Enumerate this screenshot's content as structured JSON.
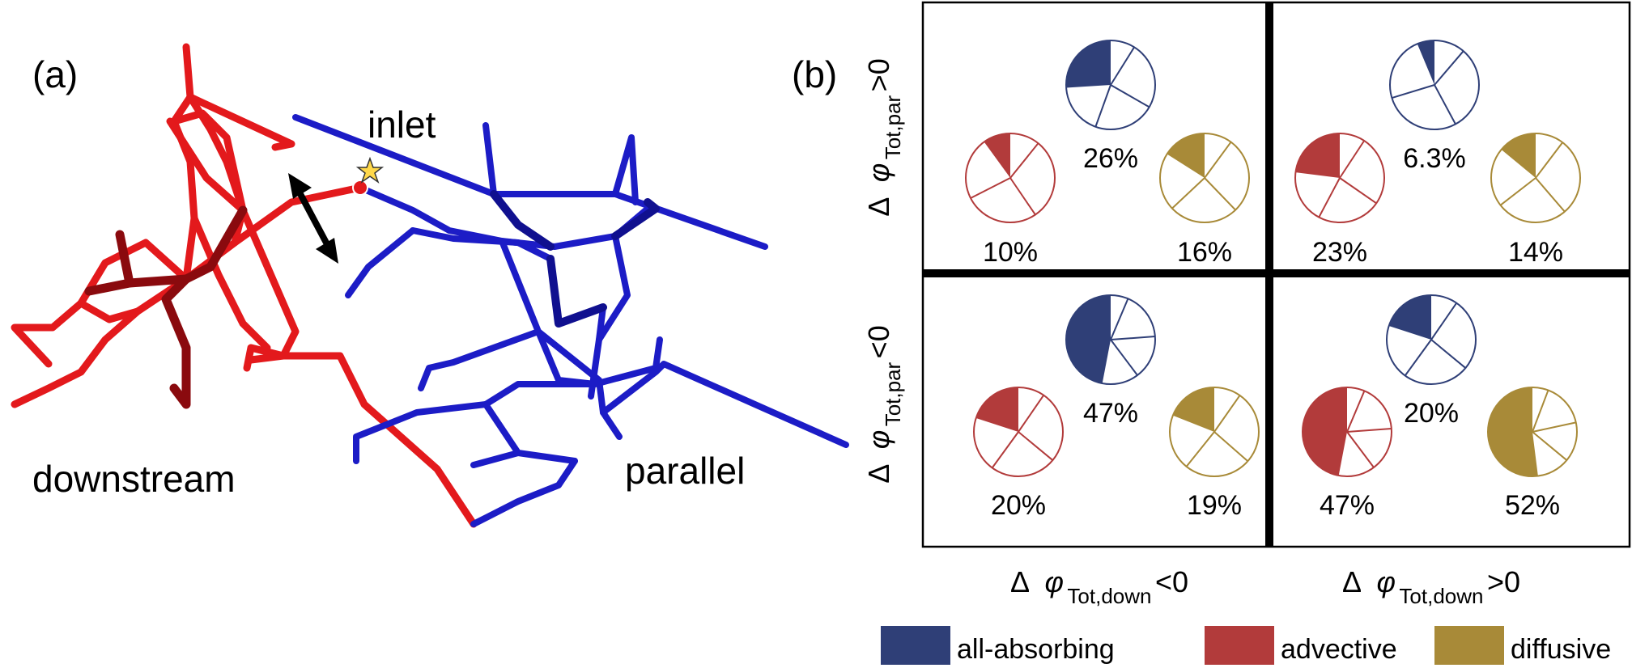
{
  "panel_a": {
    "label": "(a)",
    "labels": {
      "inlet": "inlet",
      "downstream": "downstream",
      "parallel": "parallel"
    }
  },
  "panel_b": {
    "label": "(b)",
    "y_axis": {
      "top": {
        "delta": "Δ",
        "phi": "φ",
        "sub": "Tot,par",
        "rel": ">0"
      },
      "bottom": {
        "delta": "Δ",
        "phi": "φ",
        "sub": "Tot,par",
        "rel": "<0"
      }
    },
    "x_axis": {
      "left": {
        "delta": "Δ",
        "phi": "φ",
        "sub": "Tot,down",
        "rel": "<0"
      },
      "right": {
        "delta": "Δ",
        "phi": "φ",
        "sub": "Tot,down",
        "rel": ">0"
      }
    },
    "colors": {
      "all_absorbing": "#2f3f77",
      "advective": "#b23b3b",
      "diffusive": "#a88a38"
    },
    "quadrants": [
      {
        "id": "top-left",
        "all_absorbing": "26%",
        "advective": "10%",
        "diffusive": "16%"
      },
      {
        "id": "top-right",
        "all_absorbing": "6.3%",
        "advective": "23%",
        "diffusive": "14%"
      },
      {
        "id": "bottom-left",
        "all_absorbing": "47%",
        "advective": "20%",
        "diffusive": "19%"
      },
      {
        "id": "bottom-right",
        "all_absorbing": "20%",
        "advective": "47%",
        "diffusive": "52%"
      }
    ]
  },
  "legend": [
    {
      "name": "all-absorbing",
      "color": "#2f3f77"
    },
    {
      "name": "advective",
      "color": "#b23b3b"
    },
    {
      "name": "diffusive",
      "color": "#a88a38"
    }
  ]
}
